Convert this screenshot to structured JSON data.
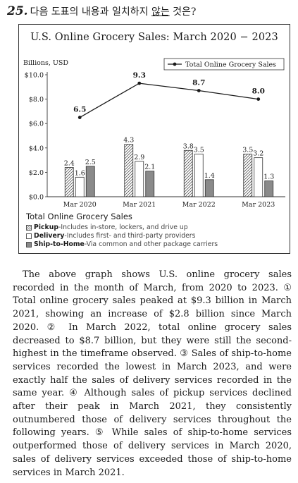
{
  "question": {
    "number": "25.",
    "prompt_before": "다음 도표의 내용과 일치하지 ",
    "prompt_negation": "않는",
    "prompt_after": " 것은?"
  },
  "chart_data": {
    "type": "bar",
    "title": "U.S. Online Grocery Sales: March 2020 − 2023",
    "ylabel": "Billions, USD",
    "ylim": [
      0,
      10
    ],
    "yticks": [
      "$0.0",
      "$2.0",
      "$4.0",
      "$6.0",
      "$8.0",
      "$10.0"
    ],
    "categories": [
      "Mar 2020",
      "Mar 2021",
      "Mar 2022",
      "Mar 2023"
    ],
    "series": [
      {
        "name": "Pickup",
        "values": [
          2.4,
          4.3,
          3.8,
          3.5
        ],
        "labels": [
          "2.4",
          "4.3",
          "3.8",
          "3.5"
        ],
        "pattern": "hatched"
      },
      {
        "name": "Delivery",
        "values": [
          1.6,
          2.9,
          3.5,
          3.2
        ],
        "labels": [
          "1.6",
          "2.9",
          "3.5",
          "3.2"
        ],
        "pattern": "white"
      },
      {
        "name": "Ship-to-Home",
        "values": [
          2.5,
          2.1,
          1.4,
          1.3
        ],
        "labels": [
          "2.5",
          "2.1",
          "1.4",
          "1.3"
        ],
        "pattern": "gray"
      }
    ],
    "line_series": {
      "name": "Total Online Grocery Sales",
      "values": [
        6.5,
        9.3,
        8.7,
        8.0
      ],
      "labels": [
        "6.5",
        "9.3",
        "8.7",
        "8.0"
      ]
    },
    "legend_title": "Total Online Grocery Sales",
    "legend": [
      {
        "name": "Pickup",
        "desc": "-Includes in-store, lockers, and drive up"
      },
      {
        "name": "Delivery",
        "desc": "-Includes first- and third-party providers"
      },
      {
        "name": "Ship-to-Home",
        "desc": "-Via common and other package carriers"
      }
    ],
    "colors": {
      "gray": "#8a8a8a",
      "ink": "#1a1a1a"
    }
  },
  "passage": "The above graph shows U.S. online grocery sales recorded in the month of March, from 2020 to 2023. ① Total online grocery sales peaked at $9.3 billion in March 2021, showing an increase of $2.8 billion since March 2020. ② In March 2022, total online grocery sales decreased to $8.7 billion, but they were still the second-highest in the timeframe observed. ③ Sales of ship-to-home services recorded the lowest in March 2023, and were exactly half the sales of delivery services recorded in the same year. ④ Although sales of pickup services declined after their peak in March 2021, they consistently outnumbered those of delivery services throughout the following years. ⑤ While sales of ship-to-home services outperformed those of delivery services in March 2020, sales of delivery services exceeded those of ship-to-home services in March 2021."
}
